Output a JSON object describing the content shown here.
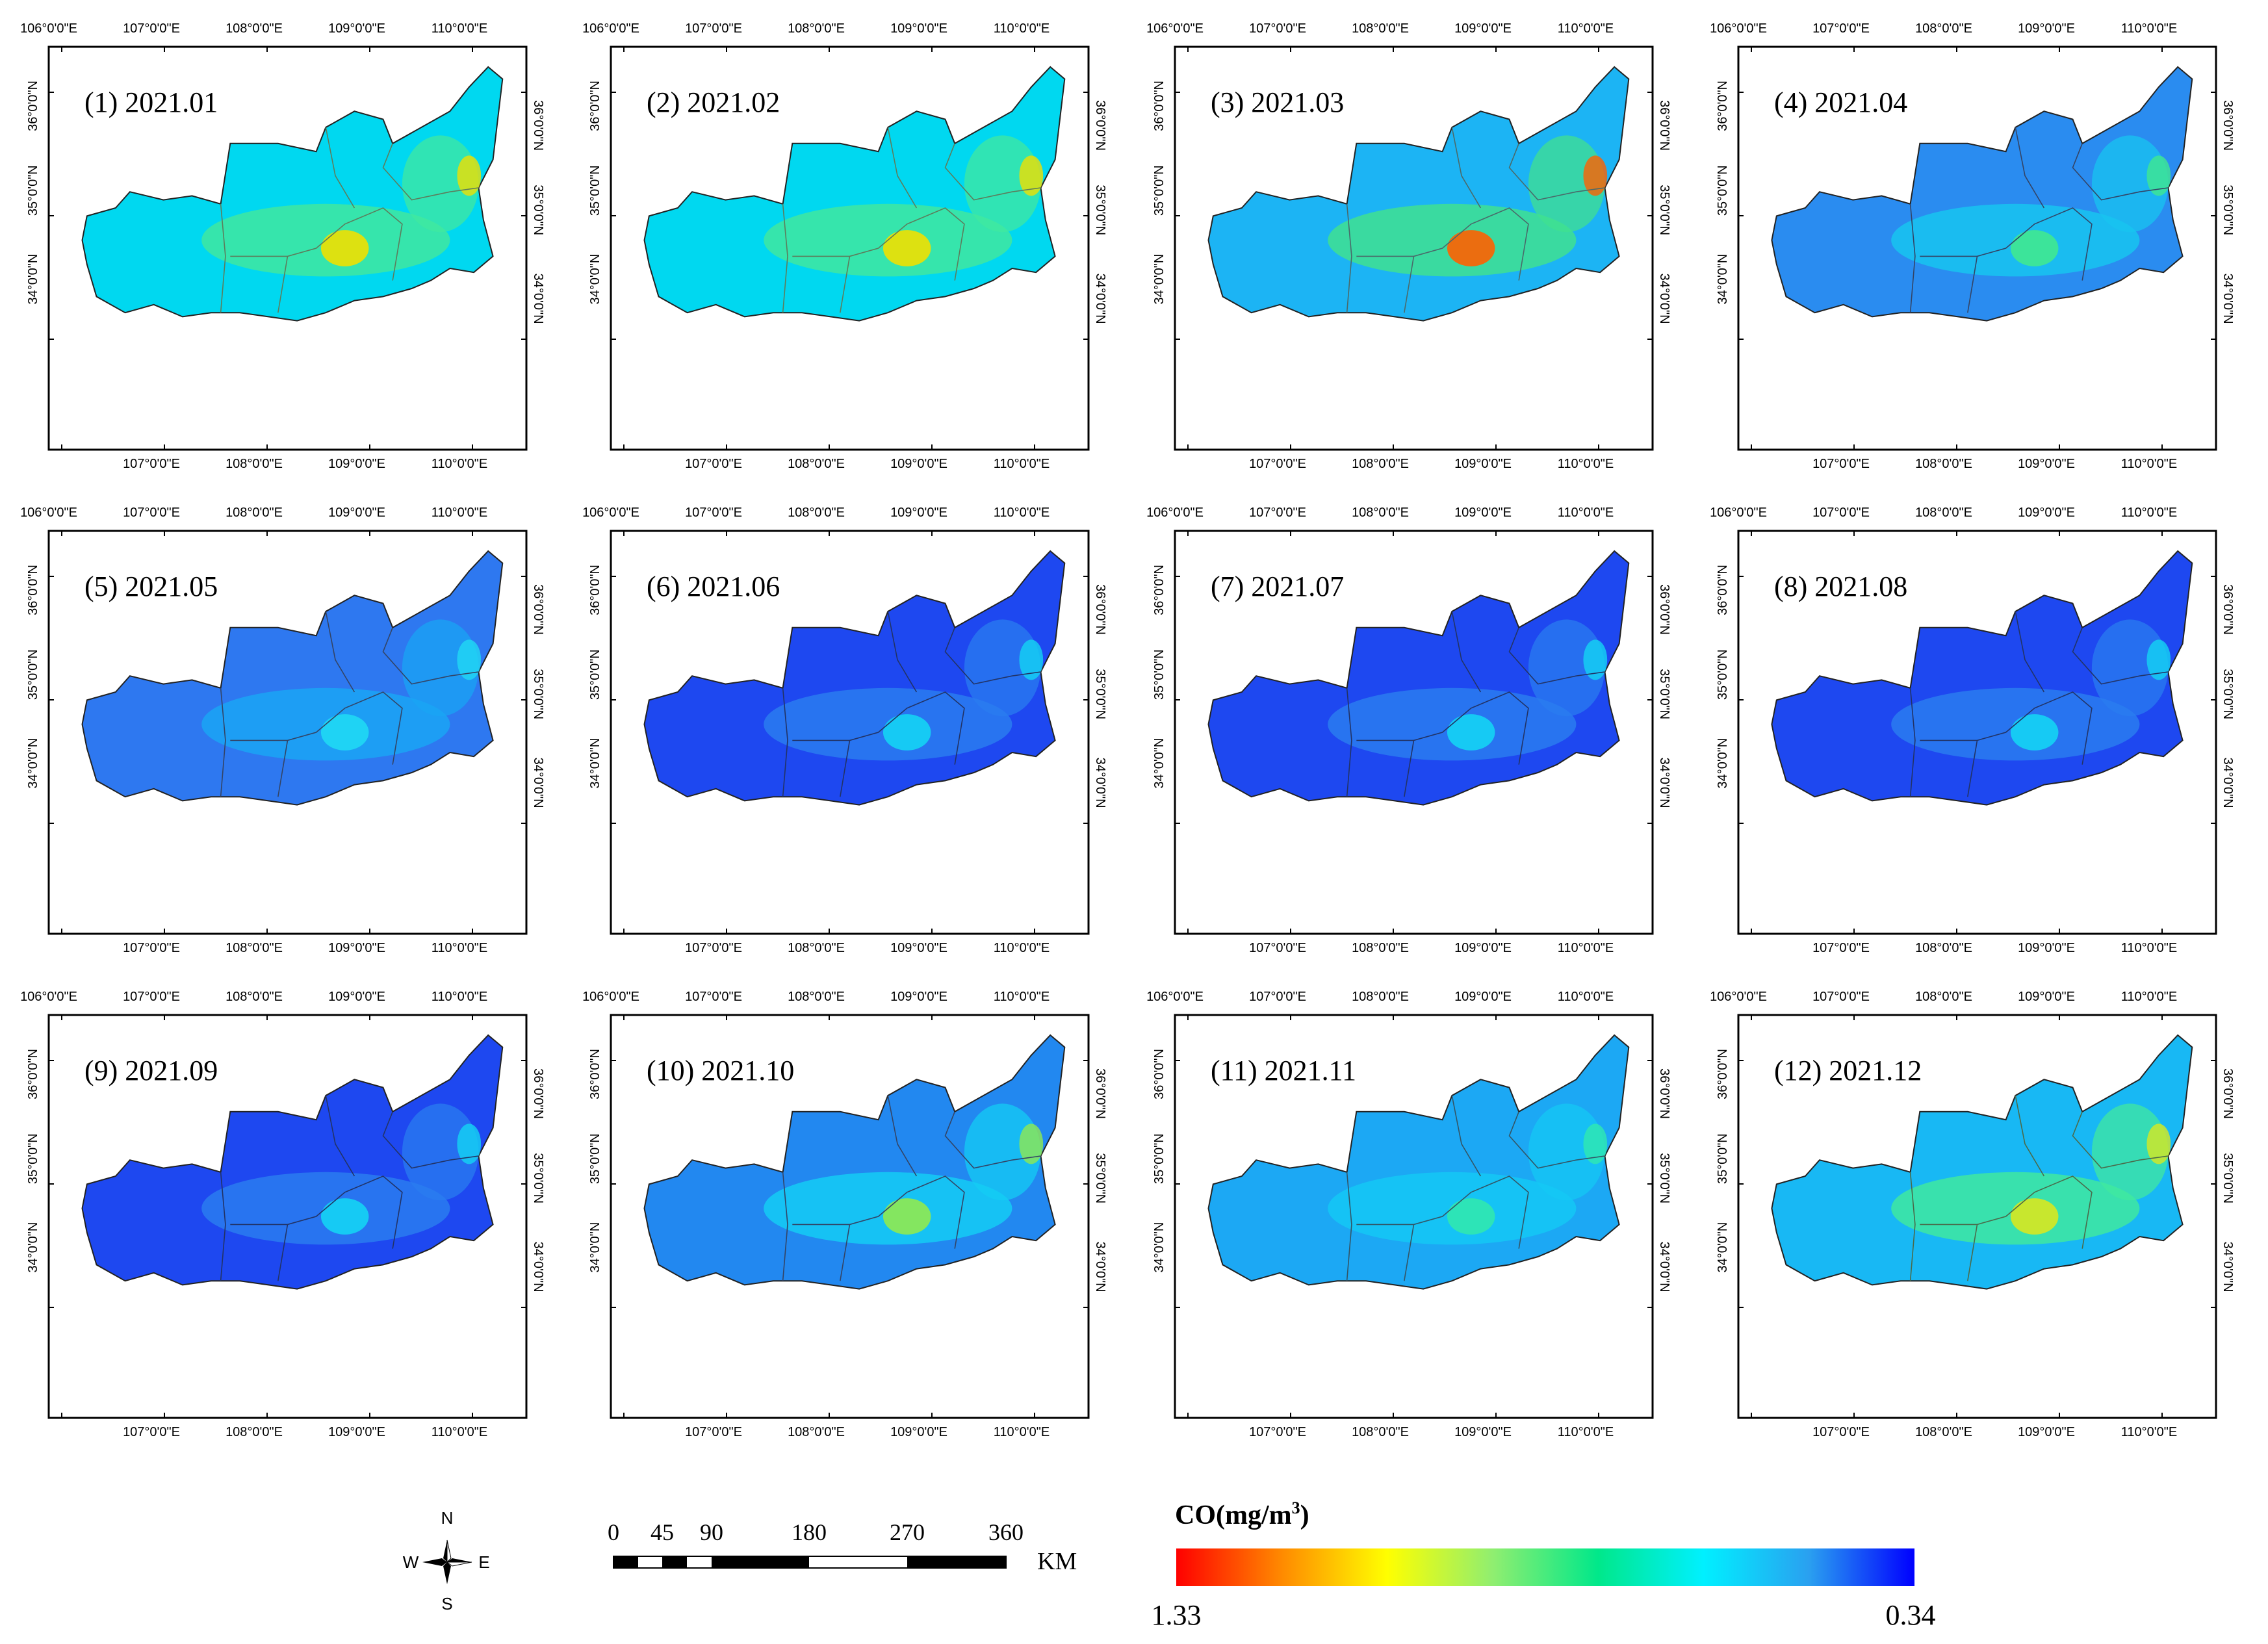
{
  "figure": {
    "lon_labels": [
      "106°0'0\"E",
      "107°0'0\"E",
      "108°0'0\"E",
      "109°0'0\"E",
      "110°0'0\"E"
    ],
    "bottom_lon_labels": [
      "107°0'0\"E",
      "108°0'0\"E",
      "109°0'0\"E",
      "110°0'0\"E"
    ],
    "lat_labels": [
      "36°0'0\"N",
      "35°0'0\"N",
      "34°0'0\"N"
    ],
    "panels": [
      {
        "label": "(1) 2021.01",
        "palette": "high1"
      },
      {
        "label": "(2) 2021.02",
        "palette": "high1"
      },
      {
        "label": "(3) 2021.03",
        "palette": "high3"
      },
      {
        "label": "(4) 2021.04",
        "palette": "mid"
      },
      {
        "label": "(5) 2021.05",
        "palette": "lowmid"
      },
      {
        "label": "(6) 2021.06",
        "palette": "low"
      },
      {
        "label": "(7) 2021.07",
        "palette": "low"
      },
      {
        "label": "(8) 2021.08",
        "palette": "low"
      },
      {
        "label": "(9) 2021.09",
        "palette": "low"
      },
      {
        "label": "(10) 2021.10",
        "palette": "mid2"
      },
      {
        "label": "(11) 2021.11",
        "palette": "mid3"
      },
      {
        "label": "(12) 2021.12",
        "palette": "high12"
      }
    ]
  },
  "compass": {
    "n": "N",
    "s": "S",
    "e": "E",
    "w": "W"
  },
  "scalebar": {
    "ticks": [
      "0",
      "45",
      "90",
      "180",
      "270",
      "360"
    ],
    "unit": "KM"
  },
  "legend": {
    "title_prefix": "CO(mg/m",
    "title_sup": "3",
    "title_suffix": ")",
    "max_label": "1.33",
    "min_label": "0.34",
    "colors": [
      "#ff0000",
      "#ff8a00",
      "#ffff00",
      "#90ee70",
      "#00e88a",
      "#00f0ff",
      "#2aa0f0",
      "#0000ff"
    ]
  },
  "palettes": {
    "high1": {
      "base": "#00d8f0",
      "mid": "#40e8a0",
      "hot": "#f0e000",
      "line": "#5c7d5c"
    },
    "high3": {
      "base": "#1cb4f4",
      "mid": "#40e090",
      "hot": "#ff6000",
      "line": "#4a6a6a"
    },
    "mid": {
      "base": "#2a8cf0",
      "mid": "#18c4f0",
      "hot": "#40e890",
      "line": "#334466"
    },
    "lowmid": {
      "base": "#2e78f0",
      "mid": "#1aa4f4",
      "hot": "#20d8f4",
      "line": "#334466"
    },
    "low": {
      "base": "#1e48f0",
      "mid": "#2a7cf0",
      "hot": "#14d4f4",
      "line": "#223366"
    },
    "mid2": {
      "base": "#2288f0",
      "mid": "#14ccf4",
      "hot": "#90ea50",
      "line": "#334466"
    },
    "mid3": {
      "base": "#1ca8f4",
      "mid": "#14c8f4",
      "hot": "#30e8b0",
      "line": "#335566"
    },
    "high12": {
      "base": "#18b8f4",
      "mid": "#40e8a0",
      "hot": "#d8e820",
      "line": "#4a6a4a"
    }
  }
}
